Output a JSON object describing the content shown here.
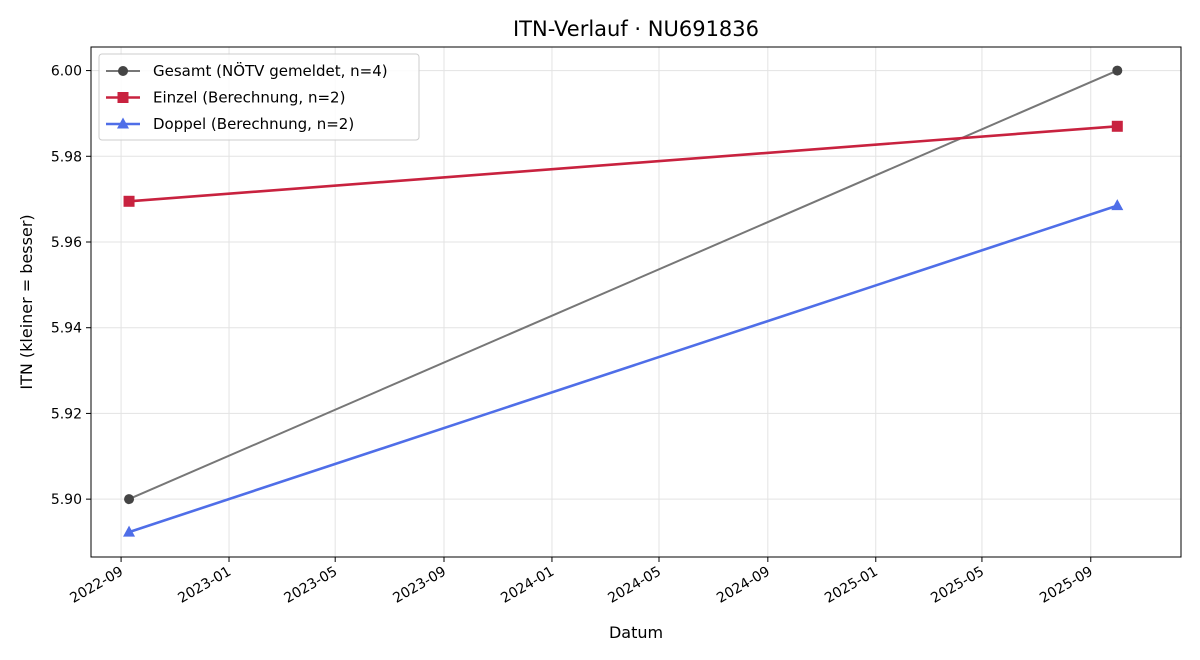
{
  "chart_data": {
    "type": "line",
    "title": "ITN-Verlauf · NU691836",
    "xlabel": "Datum",
    "ylabel": "ITN  (kleiner = besser)",
    "x_ticks": [
      "2022-09",
      "2023-01",
      "2023-05",
      "2023-09",
      "2024-01",
      "2024-05",
      "2024-09",
      "2025-01",
      "2025-05",
      "2025-09"
    ],
    "y_ticks": [
      "5.90",
      "5.92",
      "5.94",
      "5.96",
      "5.98",
      "6.00"
    ],
    "ylim": [
      5.8865,
      6.0055
    ],
    "xlim": [
      "2022-07-29",
      "2025-12-12"
    ],
    "grid": true,
    "legend_position": "top-left",
    "series": [
      {
        "name": "Gesamt (NÖTV gemeldet, n=4)",
        "color": "#777777",
        "marker": "circle",
        "points": [
          {
            "x": "2022-09-10",
            "y": 5.9
          },
          {
            "x": "2025-10-01",
            "y": 6.0
          }
        ]
      },
      {
        "name": "Einzel (Berechnung, n=2)",
        "color": "#c8223f",
        "marker": "square",
        "points": [
          {
            "x": "2022-09-10",
            "y": 5.9695
          },
          {
            "x": "2025-10-01",
            "y": 5.987
          }
        ]
      },
      {
        "name": "Doppel (Berechnung, n=2)",
        "color": "#4f6ee8",
        "marker": "triangle",
        "points": [
          {
            "x": "2022-09-10",
            "y": 5.8923
          },
          {
            "x": "2025-10-01",
            "y": 5.9685
          }
        ]
      }
    ]
  }
}
